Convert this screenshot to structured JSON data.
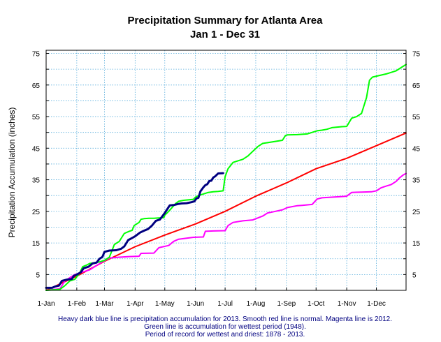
{
  "chart_data": {
    "type": "line",
    "title": "Precipitation Summary for Atlanta Area",
    "subtitle": "Jan 1 - Dec 31",
    "ylabel": "Precipitation Accumulation (inches)",
    "xlabel": "",
    "x_tick_labels": [
      "1-Jan",
      "1-Feb",
      "1-Mar",
      "1-Apr",
      "1-May",
      "1-Jun",
      "1-Jul",
      "1-Aug",
      "1-Sep",
      "1-Oct",
      "1-Nov",
      "1-Dec"
    ],
    "x_tick_days": [
      1,
      32,
      60,
      91,
      121,
      152,
      182,
      213,
      244,
      274,
      305,
      335
    ],
    "xlim": [
      1,
      365
    ],
    "y_tick_labels": [
      "5",
      "15",
      "25",
      "35",
      "45",
      "55",
      "65",
      "75"
    ],
    "y_tick_values": [
      5,
      15,
      25,
      35,
      45,
      55,
      65,
      75
    ],
    "ylim": [
      0,
      76
    ],
    "grid": true,
    "legend": "none",
    "notes": [
      "Heavy dark blue line is precipitation accumulation for 2013. Smooth red line is normal. Magenta line is 2012.",
      "Green line is accumulation for wettest period (1948).",
      "Period of record for wettest and driest: 1878 - 2013."
    ],
    "series": [
      {
        "color": "#000080",
        "width": 3,
        "x": [
          1,
          7,
          10,
          14,
          17,
          22,
          27,
          29,
          32,
          36,
          39,
          44,
          48,
          52,
          55,
          58,
          60,
          65,
          72,
          77,
          80,
          84,
          88,
          91,
          96,
          100,
          104,
          108,
          112,
          116,
          121,
          126,
          130,
          134,
          138,
          143,
          148,
          151,
          153,
          155,
          157,
          160,
          162,
          164,
          166,
          168,
          170,
          172,
          175,
          180
        ],
        "y": [
          0.8,
          0.8,
          1.2,
          1.5,
          3.0,
          3.4,
          3.6,
          4.6,
          5.0,
          5.7,
          7.0,
          7.5,
          8.5,
          8.8,
          10.0,
          10.6,
          12.2,
          12.6,
          12.7,
          13.2,
          13.9,
          15.9,
          16.6,
          17.1,
          18.3,
          18.9,
          19.4,
          20.5,
          22.0,
          22.4,
          24.5,
          26.9,
          27.0,
          27.3,
          27.5,
          27.6,
          27.9,
          28.2,
          29.1,
          29.3,
          31.3,
          32.6,
          33.3,
          33.6,
          34.6,
          34.7,
          35.7,
          36.1,
          37.0,
          37.1
        ]
      },
      {
        "color": "#ff0000",
        "width": 2,
        "x": [
          1,
          32,
          60,
          91,
          121,
          152,
          182,
          213,
          244,
          274,
          305,
          335,
          365
        ],
        "y": [
          0,
          4.5,
          9.2,
          13.8,
          17.5,
          21.0,
          25.0,
          29.8,
          34.0,
          38.5,
          41.8,
          45.8,
          49.8
        ]
      },
      {
        "color": "#ff00ff",
        "width": 2,
        "x": [
          1,
          15,
          20,
          30,
          35,
          45,
          50,
          58,
          65,
          75,
          85,
          95,
          97,
          110,
          115,
          125,
          130,
          135,
          150,
          160,
          162,
          170,
          182,
          185,
          190,
          200,
          210,
          220,
          225,
          230,
          240,
          245,
          255,
          260,
          270,
          275,
          280,
          290,
          300,
          305,
          310,
          320,
          330,
          335,
          340,
          345,
          350,
          355,
          358,
          362,
          365
        ],
        "y": [
          0,
          0.5,
          3.0,
          5.0,
          5.5,
          6.5,
          7.5,
          9.0,
          10.2,
          10.5,
          10.7,
          10.8,
          11.7,
          11.8,
          13.5,
          14.2,
          15.5,
          16.2,
          16.8,
          16.9,
          18.7,
          18.8,
          18.9,
          20.5,
          21.5,
          22.0,
          22.3,
          23.5,
          24.5,
          24.8,
          25.5,
          26.2,
          26.8,
          26.9,
          27.2,
          28.9,
          29.3,
          29.5,
          29.7,
          29.8,
          31.0,
          31.1,
          31.2,
          31.5,
          32.5,
          33.0,
          33.5,
          34.5,
          35.5,
          36.5,
          37.0
        ]
      },
      {
        "color": "#00ff00",
        "width": 2,
        "x": [
          1,
          15,
          20,
          25,
          30,
          35,
          38,
          42,
          45,
          55,
          60,
          65,
          70,
          75,
          78,
          80,
          85,
          88,
          90,
          95,
          97,
          100,
          105,
          110,
          115,
          120,
          121,
          125,
          130,
          132,
          135,
          140,
          150,
          152,
          155,
          160,
          165,
          170,
          175,
          180,
          182,
          185,
          190,
          195,
          200,
          205,
          210,
          215,
          220,
          230,
          240,
          243,
          245,
          255,
          265,
          270,
          275,
          280,
          285,
          290,
          300,
          305,
          310,
          315,
          320,
          325,
          328,
          331,
          335,
          345,
          350,
          355,
          360,
          365
        ],
        "y": [
          0,
          0.3,
          1.5,
          3.0,
          3.5,
          5.5,
          7.5,
          8.0,
          8.5,
          9.0,
          9.5,
          10.5,
          14.5,
          15.5,
          17.0,
          18.0,
          18.7,
          19.0,
          20.5,
          21.5,
          22.5,
          22.7,
          22.8,
          22.8,
          22.9,
          23.0,
          23.8,
          25.0,
          26.8,
          27.5,
          28.2,
          28.5,
          28.8,
          29.5,
          30.0,
          30.5,
          31.0,
          31.2,
          31.3,
          31.5,
          36.0,
          38.5,
          40.5,
          41.0,
          41.5,
          42.5,
          44.0,
          45.5,
          46.5,
          47.0,
          47.5,
          49.0,
          49.2,
          49.3,
          49.5,
          50.0,
          50.5,
          50.7,
          51.0,
          51.5,
          51.8,
          51.9,
          54.5,
          55.0,
          56.0,
          61.0,
          66.5,
          67.5,
          67.8,
          68.5,
          69.0,
          69.5,
          70.5,
          71.5
        ]
      }
    ]
  }
}
